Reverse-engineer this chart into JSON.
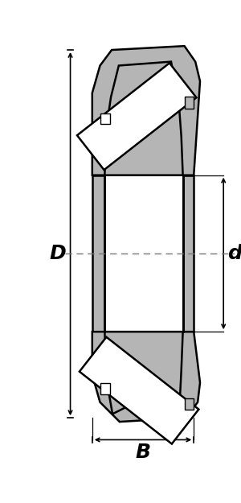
{
  "bg_color": "#ffffff",
  "gray": "#b5b5b5",
  "black": "#000000",
  "lw_main": 1.8,
  "lw_thin": 1.0,
  "figsize": [
    3.0,
    6.25
  ],
  "dpi": 100,
  "label_D": "D",
  "label_d": "d",
  "label_B": "B",
  "clr_dash": "#777777"
}
